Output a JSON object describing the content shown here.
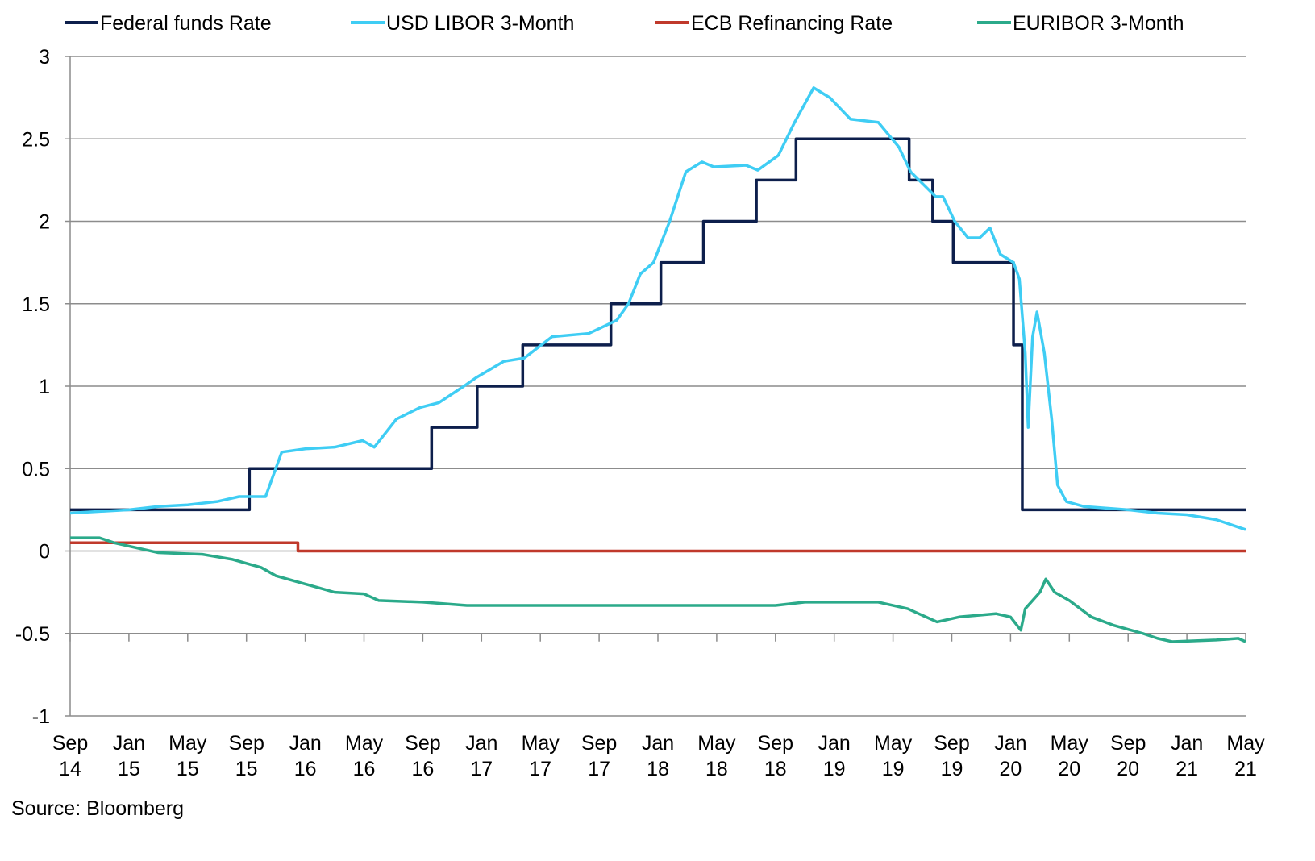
{
  "chart_data": {
    "type": "line",
    "title": "",
    "xlabel": "",
    "ylabel": "",
    "source": "Source: Bloomberg",
    "x_unit": "months since Sep 2014",
    "xlim": [
      0,
      80
    ],
    "ylim": [
      -1,
      3
    ],
    "y_ticks": [
      3,
      2.5,
      2,
      1.5,
      1,
      0.5,
      0,
      -0.5,
      -1
    ],
    "y_tick_labels": [
      "3",
      "2.5",
      "2",
      "1.5",
      "1",
      "0.5",
      "0",
      "-0.5",
      "-1"
    ],
    "x_ticks": [
      {
        "m": 0,
        "l1": "Sep",
        "l2": "14"
      },
      {
        "m": 4,
        "l1": "Jan",
        "l2": "15"
      },
      {
        "m": 8,
        "l1": "May",
        "l2": "15"
      },
      {
        "m": 12,
        "l1": "Sep",
        "l2": "15"
      },
      {
        "m": 16,
        "l1": "Jan",
        "l2": "16"
      },
      {
        "m": 20,
        "l1": "May",
        "l2": "16"
      },
      {
        "m": 24,
        "l1": "Sep",
        "l2": "16"
      },
      {
        "m": 28,
        "l1": "Jan",
        "l2": "17"
      },
      {
        "m": 32,
        "l1": "May",
        "l2": "17"
      },
      {
        "m": 36,
        "l1": "Sep",
        "l2": "17"
      },
      {
        "m": 40,
        "l1": "Jan",
        "l2": "18"
      },
      {
        "m": 44,
        "l1": "May",
        "l2": "18"
      },
      {
        "m": 48,
        "l1": "Sep",
        "l2": "18"
      },
      {
        "m": 52,
        "l1": "Jan",
        "l2": "19"
      },
      {
        "m": 56,
        "l1": "May",
        "l2": "19"
      },
      {
        "m": 60,
        "l1": "Sep",
        "l2": "19"
      },
      {
        "m": 64,
        "l1": "Jan",
        "l2": "20"
      },
      {
        "m": 68,
        "l1": "May",
        "l2": "20"
      },
      {
        "m": 72,
        "l1": "Sep",
        "l2": "20"
      },
      {
        "m": 76,
        "l1": "Jan",
        "l2": "21"
      },
      {
        "m": 80,
        "l1": "May",
        "l2": "21"
      }
    ],
    "legend_position": "top",
    "grid": true,
    "series": [
      {
        "name": "Federal funds Rate",
        "color": "#0d1f4c",
        "step": true,
        "points": [
          [
            0,
            0.25
          ],
          [
            12.2,
            0.5
          ],
          [
            24.6,
            0.75
          ],
          [
            27.7,
            1.0
          ],
          [
            30.8,
            1.25
          ],
          [
            36.8,
            1.5
          ],
          [
            40.2,
            1.75
          ],
          [
            43.1,
            2.0
          ],
          [
            46.7,
            2.25
          ],
          [
            49.4,
            2.5
          ],
          [
            57.1,
            2.25
          ],
          [
            58.7,
            2.0
          ],
          [
            60.1,
            1.75
          ],
          [
            64.2,
            1.25
          ],
          [
            64.8,
            0.25
          ],
          [
            80,
            0.25
          ]
        ]
      },
      {
        "name": "USD LIBOR 3-Month",
        "color": "#3fcdf4",
        "step": false,
        "points": [
          [
            0,
            0.23
          ],
          [
            2,
            0.24
          ],
          [
            4,
            0.25
          ],
          [
            6,
            0.27
          ],
          [
            8,
            0.28
          ],
          [
            10,
            0.3
          ],
          [
            11.5,
            0.33
          ],
          [
            13.3,
            0.33
          ],
          [
            14.4,
            0.6
          ],
          [
            16,
            0.62
          ],
          [
            18,
            0.63
          ],
          [
            19.9,
            0.67
          ],
          [
            20.7,
            0.63
          ],
          [
            22.2,
            0.8
          ],
          [
            23.8,
            0.87
          ],
          [
            25.1,
            0.9
          ],
          [
            26.8,
            1.0
          ],
          [
            27.6,
            1.05
          ],
          [
            29.5,
            1.15
          ],
          [
            30.9,
            1.17
          ],
          [
            32.8,
            1.3
          ],
          [
            35.3,
            1.32
          ],
          [
            37.2,
            1.4
          ],
          [
            38,
            1.5
          ],
          [
            38.8,
            1.68
          ],
          [
            39.7,
            1.75
          ],
          [
            40.8,
            2.0
          ],
          [
            41.9,
            2.3
          ],
          [
            43,
            2.36
          ],
          [
            43.8,
            2.33
          ],
          [
            46,
            2.34
          ],
          [
            46.8,
            2.31
          ],
          [
            48.2,
            2.4
          ],
          [
            49.3,
            2.6
          ],
          [
            50.6,
            2.81
          ],
          [
            51.7,
            2.75
          ],
          [
            53.1,
            2.62
          ],
          [
            55,
            2.6
          ],
          [
            56.4,
            2.45
          ],
          [
            57.2,
            2.3
          ],
          [
            58.9,
            2.15
          ],
          [
            59.4,
            2.15
          ],
          [
            60.2,
            2.0
          ],
          [
            61.1,
            1.9
          ],
          [
            61.9,
            1.9
          ],
          [
            62.6,
            1.96
          ],
          [
            63.3,
            1.8
          ],
          [
            64.2,
            1.75
          ],
          [
            64.6,
            1.65
          ],
          [
            65,
            1.2
          ],
          [
            65.2,
            0.75
          ],
          [
            65.5,
            1.3
          ],
          [
            65.8,
            1.45
          ],
          [
            66.3,
            1.2
          ],
          [
            66.8,
            0.8
          ],
          [
            67.2,
            0.4
          ],
          [
            67.8,
            0.3
          ],
          [
            69,
            0.27
          ],
          [
            72,
            0.25
          ],
          [
            74,
            0.23
          ],
          [
            76,
            0.22
          ],
          [
            78,
            0.19
          ],
          [
            80,
            0.13
          ]
        ]
      },
      {
        "name": "ECB Refinancing Rate",
        "color": "#c0392b",
        "step": true,
        "points": [
          [
            0,
            0.05
          ],
          [
            15.5,
            0.0
          ],
          [
            80,
            0.0
          ]
        ]
      },
      {
        "name": "EURIBOR 3-Month",
        "color": "#2baa8a",
        "step": false,
        "points": [
          [
            0,
            0.08
          ],
          [
            2,
            0.08
          ],
          [
            3,
            0.05
          ],
          [
            4.5,
            0.02
          ],
          [
            6,
            -0.01
          ],
          [
            9,
            -0.02
          ],
          [
            11,
            -0.05
          ],
          [
            13,
            -0.1
          ],
          [
            14,
            -0.15
          ],
          [
            16,
            -0.2
          ],
          [
            18,
            -0.25
          ],
          [
            20,
            -0.26
          ],
          [
            21,
            -0.3
          ],
          [
            24,
            -0.31
          ],
          [
            27,
            -0.33
          ],
          [
            48,
            -0.33
          ],
          [
            50,
            -0.31
          ],
          [
            55,
            -0.31
          ],
          [
            57,
            -0.35
          ],
          [
            59,
            -0.43
          ],
          [
            60.5,
            -0.4
          ],
          [
            63,
            -0.38
          ],
          [
            64,
            -0.4
          ],
          [
            64.7,
            -0.48
          ],
          [
            65,
            -0.35
          ],
          [
            66,
            -0.25
          ],
          [
            66.4,
            -0.17
          ],
          [
            67,
            -0.25
          ],
          [
            68,
            -0.3
          ],
          [
            69.5,
            -0.4
          ],
          [
            71,
            -0.45
          ],
          [
            73,
            -0.5
          ],
          [
            74,
            -0.53
          ],
          [
            75,
            -0.55
          ],
          [
            78,
            -0.54
          ],
          [
            79.5,
            -0.53
          ],
          [
            80,
            -0.55
          ]
        ]
      }
    ]
  }
}
